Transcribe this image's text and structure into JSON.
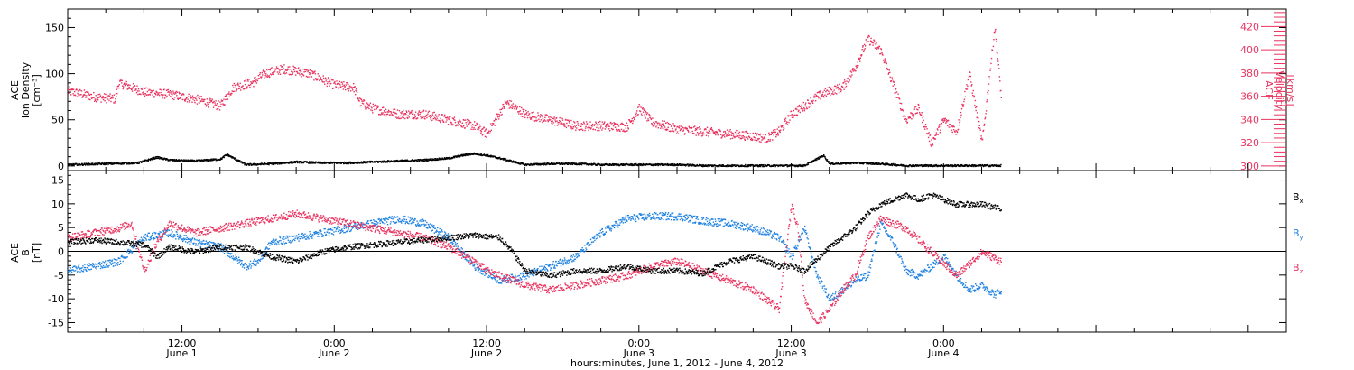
{
  "colors": {
    "black": "#000000",
    "pink": "#e8335f",
    "blue": "#1f82e0",
    "axis": "#000000"
  },
  "xaxis": {
    "title": "hours:minutes, June  1, 2012 - June  4, 2012",
    "range_hours": [
      0,
      96
    ],
    "ticks": [
      {
        "h": 9,
        "time": "12:00",
        "date": "June 1"
      },
      {
        "h": 21,
        "time": "0:00",
        "date": "June 2"
      },
      {
        "h": 33,
        "time": "12:00",
        "date": "June 2"
      },
      {
        "h": 45,
        "time": "0:00",
        "date": "June 3"
      },
      {
        "h": 57,
        "time": "12:00",
        "date": "June 3"
      },
      {
        "h": 69,
        "time": "0:00",
        "date": "June 4"
      }
    ]
  },
  "panels": [
    {
      "id": "top",
      "left_label": [
        "ACE",
        "Ion Density",
        "[cm⁻³]"
      ],
      "right_label": [
        "ACE",
        "Velocity",
        "[km/s]"
      ],
      "left_ticks": [
        "0",
        "50",
        "100",
        "150"
      ],
      "left_range": [
        -5,
        170
      ],
      "right_ticks": [
        "300",
        "320",
        "340",
        "360",
        "380",
        "400",
        "420"
      ],
      "right_range": [
        296,
        435
      ]
    },
    {
      "id": "bottom",
      "left_label": [
        "ACE",
        "B",
        "[nT]"
      ],
      "left_ticks": [
        "-15",
        "-10",
        "-5",
        "0",
        "5",
        "10",
        "15"
      ],
      "left_range": [
        -17,
        17
      ],
      "legend": [
        {
          "text": "B",
          "sub": "x",
          "color": "black"
        },
        {
          "text": "B",
          "sub": "y",
          "color": "blue"
        },
        {
          "text": "B",
          "sub": "z",
          "color": "pink"
        }
      ]
    }
  ],
  "chart_data": [
    {
      "type": "scatter",
      "title": "",
      "xlabel": "hours:minutes, June  1, 2012 - June  4, 2012",
      "ylabel": "ACE Ion Density [cm⁻³]",
      "y2label": "ACE Velocity [km/s]",
      "xlim_hours": [
        0,
        96
      ],
      "ylim": [
        -5,
        170
      ],
      "y2lim": [
        296,
        435
      ],
      "series": [
        {
          "name": "",
          "axis": "left",
          "color": "black",
          "x_hours": [
            0,
            3,
            5.5,
            7,
            8,
            10,
            12,
            12.5,
            14,
            16,
            18,
            20,
            22,
            24,
            26,
            28,
            30,
            31,
            32,
            33,
            34,
            36,
            38,
            40,
            42,
            44,
            46,
            48,
            50,
            52,
            54,
            56,
            58,
            59.5,
            60,
            62,
            64,
            66,
            68,
            70,
            72,
            73.5
          ],
          "y": [
            2,
            3,
            4,
            10,
            7,
            6,
            8,
            13,
            2,
            3,
            5,
            4,
            4,
            5,
            6,
            7,
            9,
            12,
            14,
            12,
            9,
            2,
            3,
            3,
            2,
            2,
            2,
            2,
            1,
            1,
            1,
            1,
            1,
            12,
            3,
            4,
            3,
            1,
            1,
            1,
            1,
            1
          ]
        },
        {
          "name": "",
          "axis": "right",
          "color": "pink",
          "x_hours": [
            0,
            2,
            3.7,
            4,
            5,
            6,
            8,
            10,
            12,
            13,
            14.5,
            15.5,
            17,
            19,
            21,
            22.5,
            23,
            24,
            26,
            28,
            30,
            32,
            33,
            34.5,
            35,
            36,
            38,
            40,
            42,
            44,
            45,
            46,
            48,
            50,
            52,
            54,
            55,
            56,
            57,
            58,
            59,
            60,
            61,
            62,
            63,
            64,
            65,
            66,
            67,
            68,
            69,
            70,
            71,
            72,
            73,
            73.5
          ],
          "y": [
            365,
            360,
            358,
            372,
            368,
            364,
            362,
            358,
            352,
            368,
            372,
            380,
            384,
            380,
            370,
            368,
            355,
            350,
            345,
            345,
            340,
            335,
            328,
            355,
            352,
            345,
            340,
            335,
            335,
            334,
            350,
            338,
            332,
            330,
            328,
            326,
            324,
            330,
            345,
            352,
            360,
            365,
            368,
            385,
            410,
            400,
            370,
            340,
            350,
            320,
            340,
            330,
            380,
            320,
            420,
            360
          ]
        }
      ]
    },
    {
      "type": "scatter",
      "title": "",
      "xlabel": "hours:minutes, June  1, 2012 - June  4, 2012",
      "ylabel": "ACE B [nT]",
      "xlim_hours": [
        0,
        96
      ],
      "ylim": [
        -17,
        17
      ],
      "series": [
        {
          "name": "Bx",
          "color": "black",
          "x_hours": [
            0,
            2,
            4,
            6,
            7,
            8,
            10,
            12,
            14,
            16,
            18,
            20,
            22,
            24,
            26,
            28,
            30,
            32,
            34,
            35,
            36,
            38,
            40,
            42,
            44,
            46,
            48,
            50,
            52,
            54,
            56,
            57,
            58,
            60,
            62,
            63,
            64,
            66,
            67,
            68,
            69,
            70,
            72,
            73.5
          ],
          "y": [
            2,
            2.5,
            2,
            1.5,
            -1,
            1,
            0,
            1,
            1,
            -1,
            -2,
            0,
            1,
            1.5,
            2,
            2.5,
            3,
            3.5,
            3,
            0,
            -4,
            -5,
            -4,
            -4,
            -3,
            -4,
            -4,
            -4.5,
            -2,
            -1,
            -3,
            -3,
            -4,
            1,
            5,
            8,
            10,
            12,
            11,
            12,
            11,
            10,
            10,
            9
          ]
        },
        {
          "name": "By",
          "color": "blue",
          "x_hours": [
            0,
            2,
            4,
            6,
            8,
            10,
            12,
            14,
            15,
            16,
            18,
            20,
            22,
            24,
            26,
            28,
            30,
            32,
            34,
            36,
            38,
            40,
            42,
            44,
            46,
            48,
            50,
            52,
            54,
            56,
            57,
            58,
            59,
            60,
            61,
            62,
            63,
            64,
            65,
            66,
            67,
            68,
            69,
            70,
            71,
            72,
            73,
            73.5
          ],
          "y": [
            -4,
            -3,
            -2,
            3,
            4,
            2,
            1,
            -3,
            -2,
            2,
            3,
            4,
            5,
            6,
            7,
            6,
            3,
            -3,
            -6,
            -5,
            -3,
            -1,
            4,
            7,
            7.5,
            7.5,
            6.5,
            6,
            5,
            3,
            -1,
            5,
            -5,
            -10,
            -8,
            -6,
            -5,
            6,
            2,
            -4,
            -5,
            -3,
            -1,
            -5,
            -8,
            -7,
            -9,
            -8
          ]
        },
        {
          "name": "Bz",
          "color": "pink",
          "x_hours": [
            0,
            2,
            4,
            5,
            6,
            7,
            8,
            10,
            12,
            14,
            16,
            18,
            20,
            22,
            24,
            26,
            28,
            30,
            32,
            33,
            34,
            36,
            38,
            40,
            42,
            44,
            46,
            48,
            50,
            52,
            54,
            55,
            56,
            57,
            57.5,
            58,
            59,
            60,
            61,
            62,
            63,
            64,
            66,
            68,
            70,
            72,
            73.5
          ],
          "y": [
            3,
            4,
            5,
            6,
            -4,
            2,
            6,
            4,
            5,
            6,
            7,
            8,
            7,
            6,
            5,
            4,
            3,
            1,
            -2,
            -4,
            -5,
            -7,
            -8,
            -7,
            -6,
            -5,
            -3,
            -2,
            -4,
            -6,
            -8,
            -10,
            -12,
            10,
            5,
            -10,
            -15,
            -12,
            -8,
            -5,
            3,
            7,
            5,
            0,
            -5,
            0,
            -2
          ]
        }
      ]
    }
  ]
}
